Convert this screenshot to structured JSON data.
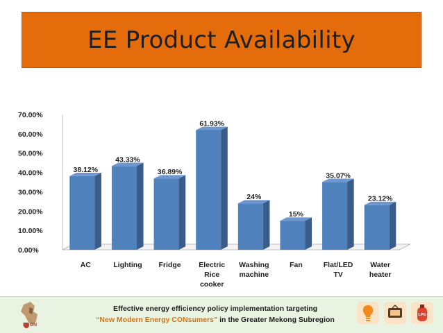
{
  "slide_title": "EE Product Availability",
  "footer": {
    "line1": "Effective energy efficiency policy implementation targeting",
    "line2_quote": "“New Modern Energy CONsumers”",
    "line2_rest": " in the Greater Mekong Subregion",
    "logo_text": "ECON",
    "icon_badge_text": "LPG"
  },
  "colors": {
    "banner": "#e46c0a",
    "bar_front": "#4f81bd",
    "bar_side": "#385d8a",
    "bar_top": "#6f97cf",
    "footer_bg": "#e8f3e2",
    "accent_text": "#d9730d"
  },
  "icons": [
    "econ-logo-icon",
    "bulb-icon",
    "tv-icon",
    "lpg-cylinder-icon"
  ],
  "chart_data": {
    "type": "bar",
    "title": "",
    "xlabel": "",
    "ylabel": "",
    "ylim": [
      0,
      70
    ],
    "yticks": [
      "0.00%",
      "10.00%",
      "20.00%",
      "30.00%",
      "40.00%",
      "50.00%",
      "60.00%",
      "70.00%"
    ],
    "categories": [
      [
        "AC"
      ],
      [
        "Lighting"
      ],
      [
        "Fridge"
      ],
      [
        "Electric",
        "Rice",
        "cooker"
      ],
      [
        "Washing",
        "machine"
      ],
      [
        "Fan"
      ],
      [
        "Flat/LED",
        "TV"
      ],
      [
        "Water",
        "heater"
      ]
    ],
    "values": [
      38.12,
      43.33,
      36.89,
      61.93,
      24,
      15,
      35.07,
      23.12
    ],
    "data_labels": [
      "38.12%",
      "43.33%",
      "36.89%",
      "61.93%",
      "24%",
      "15%",
      "35.07%",
      "23.12%"
    ],
    "grid": false,
    "legend": "none",
    "style": "3d-column"
  }
}
